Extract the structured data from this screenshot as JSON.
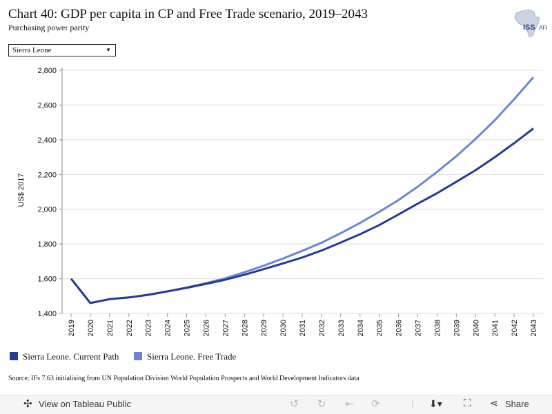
{
  "header": {
    "title": "Chart 40: GDP per capita in CP and Free Trade scenario, 2019–2043",
    "subtitle": "Purchasing power parity",
    "logo_text": "ISS",
    "logo_suffix": "AFI"
  },
  "filter": {
    "selected": "Sierra Leone"
  },
  "colors": {
    "current_path": "#253c94",
    "free_trade": "#6a86d6"
  },
  "chart_data": {
    "type": "line",
    "ylabel": "US$ 2017",
    "xlabel": "",
    "ylim": [
      1400,
      2800
    ],
    "yticks": [
      1400,
      1600,
      1800,
      2000,
      2200,
      2400,
      2600,
      2800
    ],
    "grid": true,
    "legend_position": "bottom",
    "x": [
      "2019",
      "2020",
      "2021",
      "2022",
      "2023",
      "2024",
      "2025",
      "2026",
      "2027",
      "2028",
      "2029",
      "2030",
      "2031",
      "2032",
      "2033",
      "2034",
      "2035",
      "2036",
      "2037",
      "2038",
      "2039",
      "2040",
      "2041",
      "2042",
      "2043"
    ],
    "series": [
      {
        "name": "Sierra Leone. Current Path",
        "values": [
          1600,
          1460,
          1482,
          1492,
          1507,
          1527,
          1547,
          1570,
          1594,
          1623,
          1655,
          1688,
          1722,
          1762,
          1808,
          1856,
          1909,
          1970,
          2032,
          2092,
          2158,
          2225,
          2300,
          2380,
          2465
        ]
      },
      {
        "name": "Sierra Leone. Free Trade",
        "values": [
          1600,
          1460,
          1482,
          1492,
          1507,
          1527,
          1549,
          1574,
          1602,
          1637,
          1675,
          1716,
          1760,
          1807,
          1862,
          1921,
          1985,
          2053,
          2130,
          2215,
          2305,
          2405,
          2513,
          2633,
          2760
        ]
      }
    ]
  },
  "source": "Source: IFs 7.63 initialising from UN Population Division World Population Prospects and World Development Indicators data",
  "toolbar": {
    "view_label": "View on Tableau Public",
    "share_label": "Share"
  }
}
